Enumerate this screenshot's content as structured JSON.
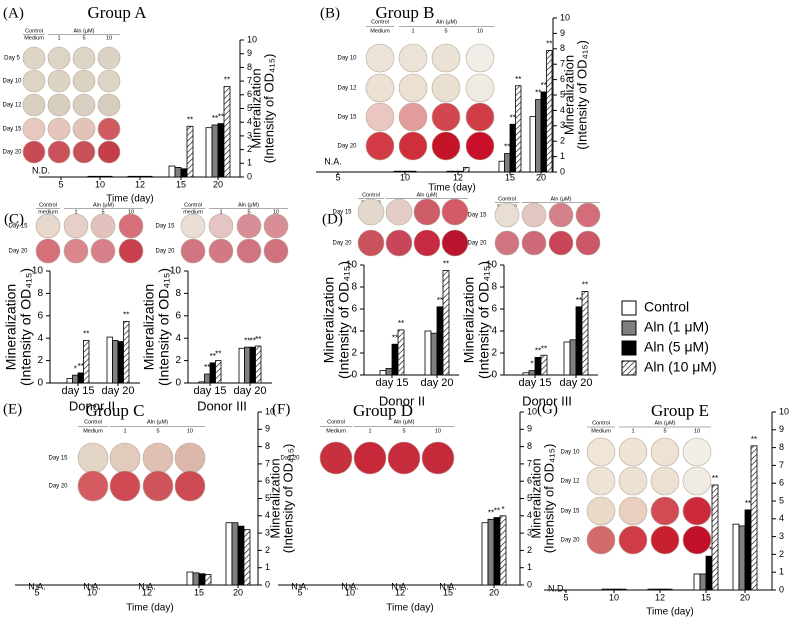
{
  "chart_data": [
    {
      "type": "bar",
      "panel": "(A)",
      "title": "Group A",
      "xlabel": "Time (day)",
      "ylabel": [
        "Mineralization",
        "(Intensity of OD₄₁₅)"
      ],
      "yaxis_side": "right",
      "categories": [
        "5",
        "10",
        "12",
        "15",
        "20"
      ],
      "ylim": [
        0,
        10
      ],
      "yticks": [
        0,
        1,
        2,
        3,
        4,
        5,
        6,
        7,
        8,
        9,
        10
      ],
      "notes": [
        "N.D.",
        null,
        null,
        null,
        null
      ],
      "series": [
        {
          "name": "Control",
          "color": "#ffffff",
          "values": [
            null,
            0.05,
            0.05,
            0.8,
            3.6
          ]
        },
        {
          "name": "Aln (1 μM)",
          "color": "#808080",
          "values": [
            null,
            0.05,
            0.05,
            0.7,
            3.8
          ],
          "stars": [
            null,
            null,
            null,
            null,
            "**"
          ]
        },
        {
          "name": "Aln (5 μM)",
          "color": "#000000",
          "values": [
            null,
            0.05,
            0.05,
            0.6,
            3.9
          ],
          "stars": [
            null,
            null,
            null,
            null,
            "**"
          ]
        },
        {
          "name": "Aln (10 μM)",
          "color": "#ffffff",
          "pattern": "hatch",
          "values": [
            null,
            0.05,
            0.05,
            3.7,
            6.6
          ],
          "stars": [
            null,
            null,
            null,
            "**",
            "**"
          ]
        }
      ],
      "plate": {
        "headers": [
          "Control",
          "Medium"
        ],
        "aln": "Aln (μM)",
        "columns": [
          "1",
          "5",
          "10"
        ],
        "rows": [
          "Day 5",
          "Day 10",
          "Day 12",
          "Day 15",
          "Day 20"
        ],
        "wells": [
          [
            "#ddd5c5",
            "#dcd4c4",
            "#ddd5c6",
            "#dbd3c3"
          ],
          [
            "#ddd4c4",
            "#dcd3c3",
            "#dbd2c2",
            "#dcd4c5"
          ],
          [
            "#d8cfc0",
            "#d7cebf",
            "#d9d0c1",
            "#d6cdbe"
          ],
          [
            "#e6c8bf",
            "#e4c4bb",
            "#e3c2b8",
            "#cf5b60"
          ],
          [
            "#c84a52",
            "#c9525a",
            "#c85059",
            "#c53f49"
          ]
        ]
      }
    },
    {
      "type": "bar",
      "panel": "(B)",
      "title": "Group B",
      "xlabel": "Time (day)",
      "ylabel": [
        "Mineralization",
        "(Intensity of OD₄₁₅)"
      ],
      "yaxis_side": "right",
      "categories": [
        "5",
        "10",
        "12",
        "15",
        "20"
      ],
      "ylim": [
        0,
        10
      ],
      "yticks": [
        0,
        1,
        2,
        3,
        4,
        5,
        6,
        7,
        8,
        9,
        10
      ],
      "notes": [
        "N.A.",
        null,
        null,
        null,
        null
      ],
      "series": [
        {
          "name": "Control",
          "color": "#ffffff",
          "values": [
            null,
            0.05,
            0.05,
            0.7,
            3.6
          ]
        },
        {
          "name": "Aln (1 μM)",
          "color": "#808080",
          "values": [
            null,
            0.05,
            0.05,
            1.2,
            4.7
          ],
          "stars": [
            null,
            null,
            null,
            "**",
            "**"
          ]
        },
        {
          "name": "Aln (5 μM)",
          "color": "#000000",
          "values": [
            null,
            0.05,
            0.05,
            3.1,
            5.2
          ],
          "stars": [
            null,
            null,
            null,
            "**",
            "**"
          ]
        },
        {
          "name": "Aln (10 μM)",
          "color": "#ffffff",
          "pattern": "hatch",
          "values": [
            null,
            0.05,
            0.3,
            5.6,
            7.9
          ],
          "stars": [
            null,
            null,
            null,
            "**",
            "**"
          ]
        }
      ],
      "plate": {
        "headers": [
          "Control",
          "Medium"
        ],
        "aln": "Aln (μM)",
        "columns": [
          "1",
          "5",
          "10"
        ],
        "rows": [
          "Day 10",
          "Day 12",
          "Day 15",
          "Day 20"
        ],
        "wells": [
          [
            "#ece4d8",
            "#ebe3d6",
            "#eae2d5",
            "#f2ede6"
          ],
          [
            "#ebe2d4",
            "#eae1d3",
            "#e9e0d2",
            "#f0ebe3"
          ],
          [
            "#e9c6c0",
            "#e29c9c",
            "#d2474f",
            "#cf3d46"
          ],
          [
            "#d23a45",
            "#cf2f3b",
            "#c41428",
            "#c8102a"
          ]
        ]
      }
    },
    {
      "type": "bar",
      "panel": "(C)",
      "xlabel": "Donor II",
      "ylabel": [
        "Mineralization",
        "(Intensity of OD₄₁₅)"
      ],
      "yaxis_side": "left",
      "categories": [
        "day 15",
        "day 20"
      ],
      "ylim": [
        0,
        10
      ],
      "yticks": [
        0,
        2,
        4,
        6,
        8,
        10
      ],
      "series": [
        {
          "name": "Control",
          "color": "#ffffff",
          "values": [
            0.4,
            4.1
          ]
        },
        {
          "name": "Aln (1 μM)",
          "color": "#808080",
          "values": [
            0.7,
            3.8
          ],
          "stars": [
            "*",
            null
          ]
        },
        {
          "name": "Aln (5 μM)",
          "color": "#000000",
          "values": [
            0.9,
            3.7
          ],
          "stars": [
            "**",
            null
          ]
        },
        {
          "name": "Aln (10 μM)",
          "color": "#ffffff",
          "pattern": "hatch",
          "values": [
            3.8,
            5.5
          ],
          "stars": [
            "**",
            "**"
          ]
        }
      ],
      "plate": {
        "headers": [
          "Control",
          "medium"
        ],
        "aln": "Aln (μM)",
        "columns": [
          "1",
          "5",
          "10"
        ],
        "rows": [
          "Day 15",
          "Day 20"
        ],
        "wells": [
          [
            "#e8d8cc",
            "#e6cfc6",
            "#e2c2bd",
            "#d7707a"
          ],
          [
            "#d56f78",
            "#d9868d",
            "#d8808a",
            "#c8404d"
          ]
        ]
      }
    },
    {
      "type": "bar",
      "xlabel": "Donor III",
      "ylabel": [
        "Mineralization",
        "(Intensity of OD₄₁₅)"
      ],
      "yaxis_side": "left",
      "categories": [
        "day 15",
        "day 20"
      ],
      "ylim": [
        0,
        10
      ],
      "yticks": [
        0,
        2,
        4,
        6,
        8,
        10
      ],
      "series": [
        {
          "name": "Control",
          "color": "#ffffff",
          "values": [
            0.1,
            3.1
          ]
        },
        {
          "name": "Aln (1 μM)",
          "color": "#808080",
          "values": [
            0.8,
            3.2
          ],
          "stars": [
            "**",
            "**"
          ]
        },
        {
          "name": "Aln (5 μM)",
          "color": "#000000",
          "values": [
            1.8,
            3.2
          ],
          "stars": [
            "**",
            "**"
          ]
        },
        {
          "name": "Aln (10 μM)",
          "color": "#ffffff",
          "pattern": "hatch",
          "values": [
            2.0,
            3.3
          ],
          "stars": [
            "**",
            "**"
          ]
        }
      ],
      "plate": {
        "headers": [
          "Control",
          "medium"
        ],
        "aln": "Aln (μM)",
        "columns": [
          "1",
          "5",
          "10"
        ],
        "rows": [
          "Day 15",
          "Day 20"
        ],
        "wells": [
          [
            "#eadfd5",
            "#e4c5c4",
            "#d88e96",
            "#d98d95"
          ],
          [
            "#d17680",
            "#d27983",
            "#d07480",
            "#cf727e"
          ]
        ]
      }
    },
    {
      "type": "bar",
      "panel": "(D)",
      "xlabel": "Donor II",
      "ylabel": [
        "Mineralization",
        "(Intensity of OD₄₁₅)"
      ],
      "yaxis_side": "left",
      "categories": [
        "day 15",
        "day 20"
      ],
      "ylim": [
        0,
        10
      ],
      "yticks": [
        0,
        2,
        4,
        6,
        8,
        10
      ],
      "series": [
        {
          "name": "Control",
          "color": "#ffffff",
          "values": [
            0.4,
            4.0
          ]
        },
        {
          "name": "Aln (1 μM)",
          "color": "#808080",
          "values": [
            0.6,
            3.8
          ]
        },
        {
          "name": "Aln (5 μM)",
          "color": "#000000",
          "values": [
            2.8,
            6.2
          ],
          "stars": [
            "**",
            "**"
          ]
        },
        {
          "name": "Aln (10 μM)",
          "color": "#ffffff",
          "pattern": "hatch",
          "values": [
            4.1,
            9.5
          ],
          "stars": [
            "**",
            "**"
          ]
        }
      ],
      "plate": {
        "headers": [
          "Control",
          "medium"
        ],
        "aln": "Aln (μM)",
        "columns": [
          "1",
          "5",
          "10"
        ],
        "rows": [
          "Day 15",
          "Day 20"
        ],
        "wells": [
          [
            "#e4d8cc",
            "#e3cdc6",
            "#cd5d66",
            "#d25b66"
          ],
          [
            "#c9525d",
            "#c9465a",
            "#c52a40",
            "#b8142e"
          ]
        ]
      }
    },
    {
      "type": "bar",
      "xlabel": "Donor III",
      "ylabel": [
        "Mineralization",
        "(Intensity of OD₄₁₅)"
      ],
      "yaxis_side": "left",
      "categories": [
        "day 15",
        "day 20"
      ],
      "ylim": [
        0,
        10
      ],
      "yticks": [
        0,
        2,
        4,
        6,
        8,
        10
      ],
      "series": [
        {
          "name": "Control",
          "color": "#ffffff",
          "values": [
            0.2,
            3.0
          ]
        },
        {
          "name": "Aln (1 μM)",
          "color": "#808080",
          "values": [
            0.4,
            3.2
          ],
          "stars": [
            "*",
            null
          ]
        },
        {
          "name": "Aln (5 μM)",
          "color": "#000000",
          "values": [
            1.6,
            6.2
          ],
          "stars": [
            "**",
            "**"
          ]
        },
        {
          "name": "Aln (10 μM)",
          "color": "#ffffff",
          "pattern": "hatch",
          "values": [
            1.8,
            7.6
          ],
          "stars": [
            "**",
            "**"
          ]
        }
      ],
      "plate": {
        "headers": [
          "Control",
          "medium"
        ],
        "aln": "Aln (μM)",
        "columns": [
          "1",
          "5",
          "10"
        ],
        "rows": [
          "Day 15",
          "Day 20"
        ],
        "wells": [
          [
            "#e8ded4",
            "#e2c6c2",
            "#d4808a",
            "#d36d7a"
          ],
          [
            "#d07480",
            "#ce6a78",
            "#c94658",
            "#cc5767"
          ]
        ]
      }
    },
    {
      "type": "bar",
      "panel": "(E)",
      "title": "Group C",
      "xlabel": "Time (day)",
      "ylabel": [
        "Mineralization",
        "(Intensity of OD₄₁₅)"
      ],
      "yaxis_side": "right",
      "categories": [
        "5",
        "10",
        "12",
        "15",
        "20"
      ],
      "ylim": [
        0,
        10
      ],
      "yticks": [
        0,
        1,
        2,
        3,
        4,
        5,
        6,
        7,
        8,
        9,
        10
      ],
      "notes": [
        "N.A.",
        "N.A.",
        "N.A.",
        null,
        null
      ],
      "series": [
        {
          "name": "Control",
          "color": "#ffffff",
          "values": [
            null,
            null,
            null,
            0.75,
            3.6
          ]
        },
        {
          "name": "Aln (1 μM)",
          "color": "#808080",
          "values": [
            null,
            null,
            null,
            0.7,
            3.6
          ]
        },
        {
          "name": "Aln (5 μM)",
          "color": "#000000",
          "values": [
            null,
            null,
            null,
            0.65,
            3.4
          ]
        },
        {
          "name": "Aln (10 μM)",
          "color": "#ffffff",
          "pattern": "hatch",
          "values": [
            null,
            null,
            null,
            0.6,
            3.2
          ]
        }
      ],
      "plate": {
        "headers": [
          "Control",
          "Medium"
        ],
        "aln": "Aln (μM)",
        "columns": [
          "1",
          "5",
          "10"
        ],
        "rows": [
          "Day 15",
          "Day 20"
        ],
        "wells": [
          [
            "#e4d6c6",
            "#e2cbbd",
            "#dfc0b3",
            "#dcb8ab"
          ],
          [
            "#d45b60",
            "#cf4a52",
            "#d0545c",
            "#cd4a54"
          ]
        ]
      }
    },
    {
      "type": "bar",
      "panel": "(F)",
      "title": "Group  D",
      "xlabel": "Time (day)",
      "ylabel": [
        "Mineralization",
        "(Intensity of OD₄₁₅)"
      ],
      "yaxis_side": "right",
      "categories": [
        "5",
        "10",
        "12",
        "15",
        "20"
      ],
      "ylim": [
        0,
        10
      ],
      "yticks": [
        0,
        1,
        2,
        3,
        4,
        5,
        6,
        7,
        8,
        9,
        10
      ],
      "notes": [
        "N.A.",
        "N.A.",
        "N.A.",
        "N.A.",
        null
      ],
      "series": [
        {
          "name": "Control",
          "color": "#ffffff",
          "values": [
            null,
            null,
            null,
            null,
            3.6
          ]
        },
        {
          "name": "Aln (1 μM)",
          "color": "#808080",
          "values": [
            null,
            null,
            null,
            null,
            3.8
          ],
          "stars": [
            null,
            null,
            null,
            null,
            "**"
          ]
        },
        {
          "name": "Aln (5 μM)",
          "color": "#000000",
          "values": [
            null,
            null,
            null,
            null,
            3.9
          ],
          "stars": [
            null,
            null,
            null,
            null,
            "**"
          ]
        },
        {
          "name": "Aln (10 μM)",
          "color": "#ffffff",
          "pattern": "hatch",
          "values": [
            null,
            null,
            null,
            null,
            4.0
          ],
          "stars": [
            null,
            null,
            null,
            null,
            "*"
          ]
        }
      ],
      "plate": {
        "headers": [
          "Control",
          "Medium"
        ],
        "aln": "Aln (μM)",
        "columns": [
          "1",
          "5",
          "10"
        ],
        "rows": [
          "Day 20"
        ],
        "wells": [
          [
            "#c8303d",
            "#c6283a",
            "#c72c3c",
            "#c52a3b"
          ]
        ]
      }
    },
    {
      "type": "bar",
      "panel": "(G)",
      "title": "Group E",
      "xlabel": "Time (day)",
      "yaxis_side": "right",
      "categories": [
        "5",
        "10",
        "12",
        "15",
        "20"
      ],
      "ylim": [
        0,
        10
      ],
      "yticks": [
        0,
        1,
        2,
        3,
        4,
        5,
        6,
        7,
        8,
        9,
        10
      ],
      "notes": [
        "N.D.",
        null,
        null,
        null,
        null
      ],
      "series": [
        {
          "name": "Control",
          "color": "#ffffff",
          "values": [
            null,
            0.05,
            0.05,
            0.9,
            3.7
          ]
        },
        {
          "name": "Aln (1 μM)",
          "color": "#808080",
          "values": [
            null,
            0.05,
            0.05,
            0.9,
            3.6
          ]
        },
        {
          "name": "Aln (5 μM)",
          "color": "#000000",
          "values": [
            null,
            0.05,
            0.05,
            1.9,
            4.5
          ],
          "stars": [
            null,
            null,
            null,
            "**",
            "**"
          ]
        },
        {
          "name": "Aln (10 μM)",
          "color": "#ffffff",
          "pattern": "hatch",
          "values": [
            null,
            0.05,
            0.05,
            5.9,
            8.1
          ],
          "stars": [
            null,
            null,
            null,
            "**",
            "**"
          ]
        }
      ],
      "plate": {
        "headers": [
          "Control",
          "Medium"
        ],
        "aln": "Aln (μM)",
        "columns": [
          "1",
          "5",
          "10"
        ],
        "rows": [
          "Day 10",
          "Day 12",
          "Day 15",
          "Day 20"
        ],
        "wells": [
          [
            "#efe6d8",
            "#eee4d6",
            "#ede2d3",
            "#f2eee8"
          ],
          [
            "#ede4d6",
            "#ece2d4",
            "#ebe0d1",
            "#f0ebe4"
          ],
          [
            "#ebd9c7",
            "#e8cfc0",
            "#d24a54",
            "#cc2a3a"
          ],
          [
            "#d56a6c",
            "#cf3c45",
            "#c8202e",
            "#c0102a"
          ]
        ]
      }
    }
  ]
}
